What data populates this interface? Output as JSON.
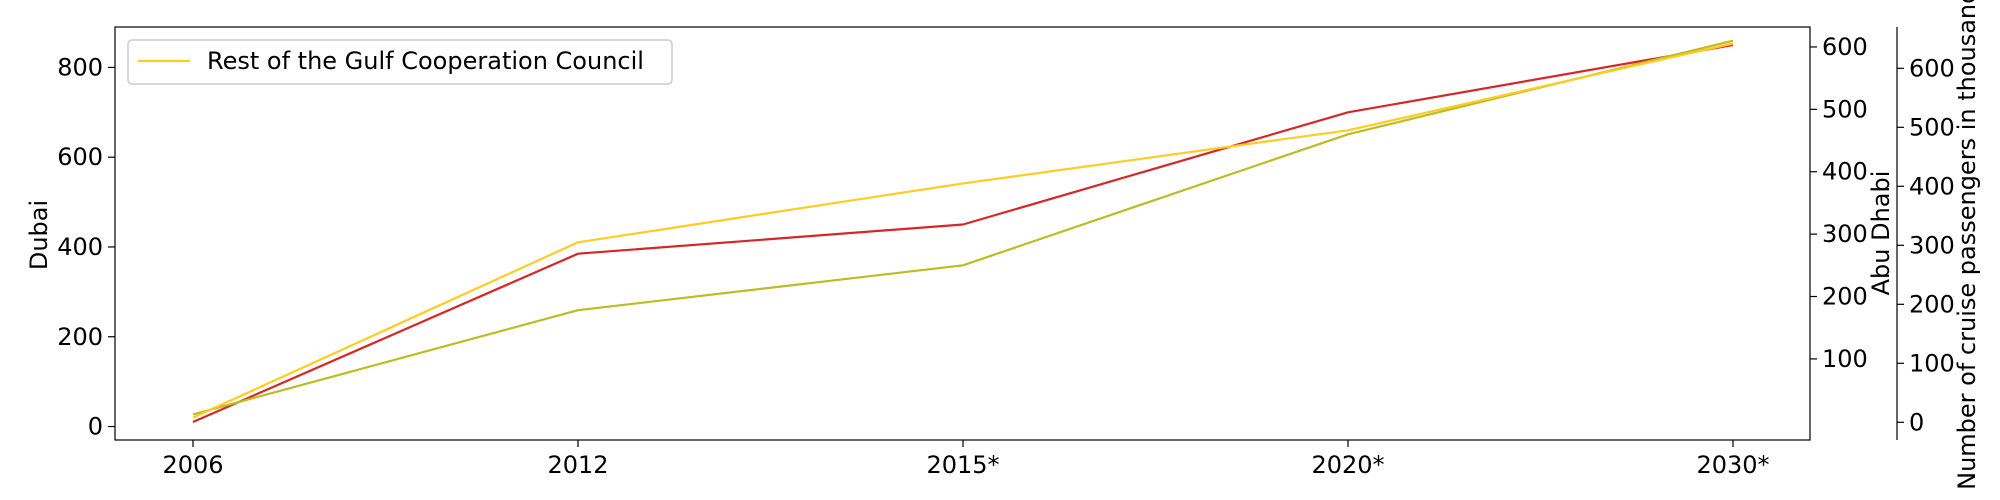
{
  "chart_data": {
    "type": "line",
    "x": [
      "2006",
      "2012",
      "2015*",
      "2020*",
      "2030*"
    ],
    "axes": {
      "left": {
        "label": "Dubai",
        "ticks": [
          0,
          200,
          400,
          600,
          800
        ],
        "ylim": [
          -30,
          890
        ]
      },
      "right1": {
        "label": "Abu Dhabi",
        "ticks": [
          100,
          200,
          300,
          400,
          500,
          600
        ],
        "ylim": [
          -30,
          632
        ]
      },
      "right2": {
        "label": "Number of cruise passengers in thousands",
        "ticks": [
          0,
          100,
          200,
          300,
          400,
          500,
          600
        ],
        "ylim": [
          -30,
          670
        ]
      }
    },
    "series": [
      {
        "name": "",
        "axis": "left",
        "color": "#d62728",
        "values": [
          10,
          385,
          450,
          700,
          850
        ]
      },
      {
        "name": "",
        "axis": "right1",
        "color": "#bcbd22",
        "values": [
          11,
          178,
          250,
          460,
          610
        ]
      },
      {
        "name": "Rest of the Gulf Cooperation Council",
        "axis": "right2",
        "color": "#ffcc22",
        "values": [
          8,
          305,
          405,
          495,
          642
        ]
      }
    ],
    "legend": {
      "position": "top-left",
      "entries": [
        "Rest of the Gulf Cooperation Council"
      ]
    },
    "grid": false
  }
}
